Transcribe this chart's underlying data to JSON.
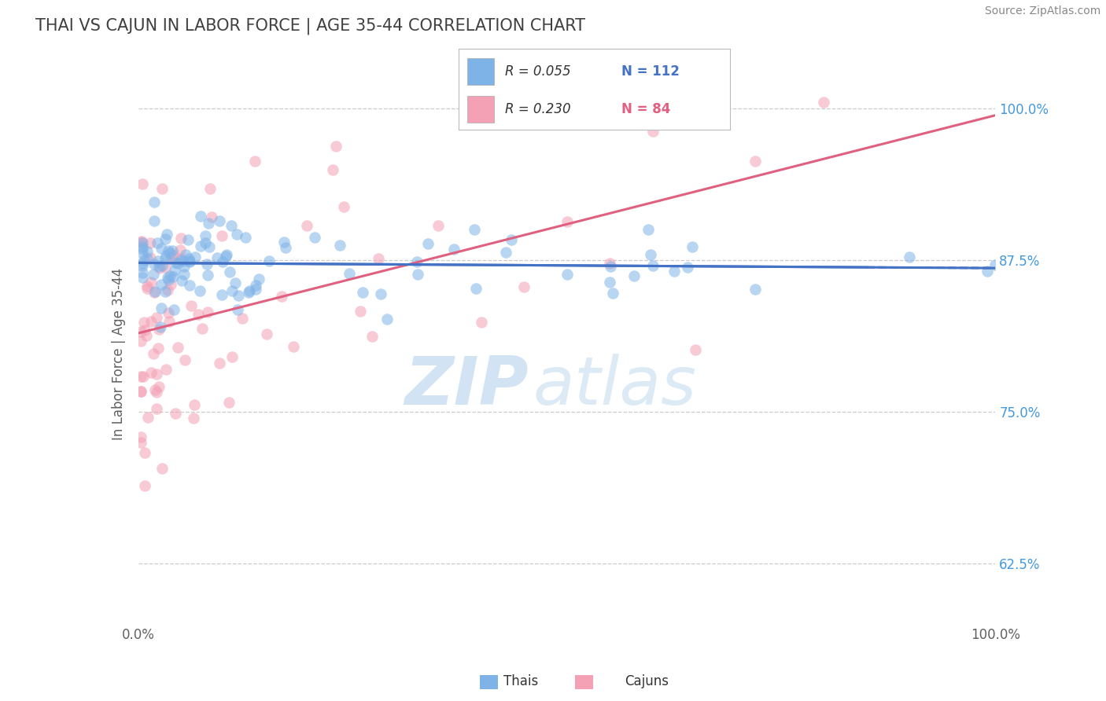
{
  "title": "THAI VS CAJUN IN LABOR FORCE | AGE 35-44 CORRELATION CHART",
  "source_text": "Source: ZipAtlas.com",
  "ylabel": "In Labor Force | Age 35-44",
  "xlim": [
    0.0,
    1.0
  ],
  "ylim": [
    0.575,
    1.02
  ],
  "yticks": [
    0.625,
    0.75,
    0.875,
    1.0
  ],
  "ytick_labels": [
    "62.5%",
    "75.0%",
    "87.5%",
    "100.0%"
  ],
  "xticks": [
    0.0,
    1.0
  ],
  "xtick_labels": [
    "0.0%",
    "100.0%"
  ],
  "legend_R1": "R = 0.055",
  "legend_N1": "N = 112",
  "legend_R2": "R = 0.230",
  "legend_N2": "N = 84",
  "color_thai": "#7EB3E8",
  "color_cajun": "#F4A0B5",
  "color_thai_line": "#4472C4",
  "color_cajun_line": "#E06080",
  "watermark_zip": "ZIP",
  "watermark_atlas": "atlas",
  "background_color": "#FFFFFF",
  "grid_color": "#CCCCCC",
  "title_color": "#404040",
  "title_fontsize": 15,
  "source_fontsize": 10,
  "axis_label_color": "#606060",
  "tick_color_right": "#4499DD",
  "scatter_size": 110,
  "scatter_alpha": 0.55
}
